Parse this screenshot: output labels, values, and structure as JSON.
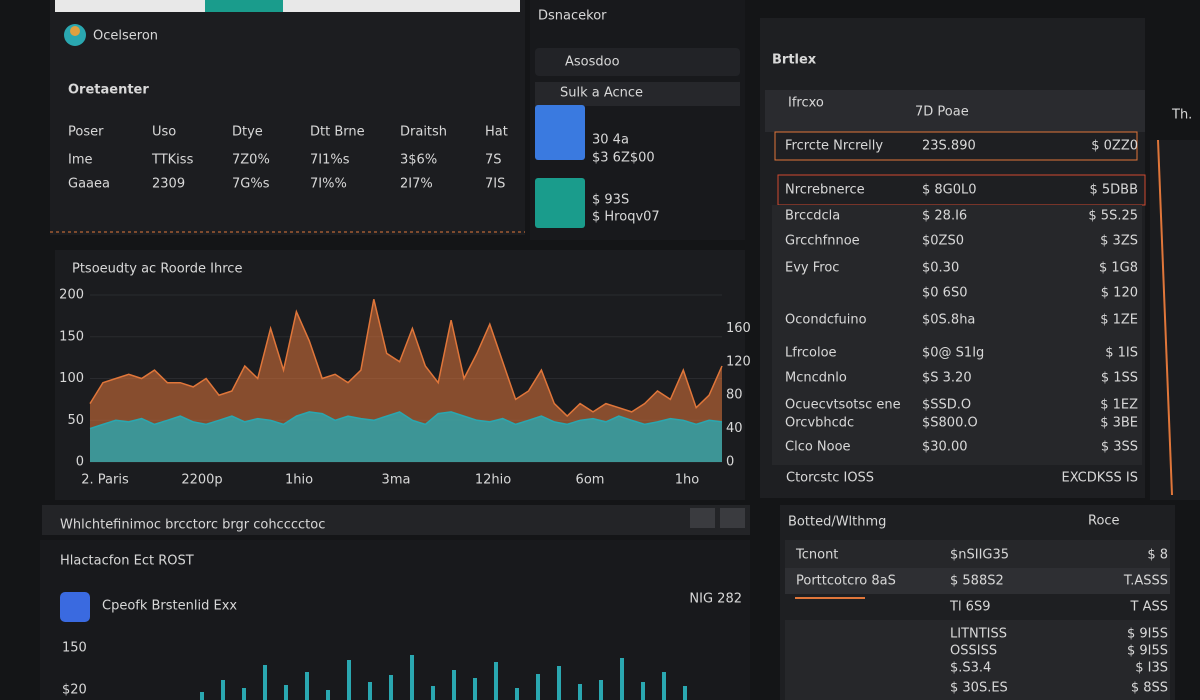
{
  "top_left": {
    "brand": "Ocelseron",
    "title": "Oretaenter",
    "headers": [
      "Poser",
      "Uso",
      "Dtye",
      "Dtt Brne",
      "Draitsh",
      "Hat"
    ],
    "rows": [
      [
        "Ime",
        "TTKiss",
        "7Z0%",
        "7I1%s",
        "3$6%",
        "7S"
      ],
      [
        "Gaaea",
        "2309",
        "7G%s",
        "7I%%",
        "2I7%",
        "7IS"
      ]
    ]
  },
  "mid_top": {
    "title": "Dsnacekor",
    "search": "Asosdoo",
    "toolbar": "Sulk a Acnce",
    "tiles": [
      {
        "value": "30 4a",
        "sub": "$3 6Z$00"
      },
      {
        "value": "$ 93S",
        "sub": "$ Hroqv07"
      }
    ]
  },
  "chart": {
    "type": "area",
    "title": "Ptsoeudty ac Roorde Ihrce",
    "categories": [
      "2. Paris",
      "2200p",
      "1hio",
      "3ma",
      "12hio",
      "6om",
      "1ho"
    ],
    "ylim": [
      0,
      200
    ],
    "yticks": [
      0,
      50,
      100,
      150,
      200
    ],
    "y2lim": [
      0,
      200
    ],
    "y2ticks": [
      0,
      40,
      80,
      120,
      160
    ],
    "series": [
      {
        "color": "#e0763a",
        "values": [
          70,
          95,
          100,
          105,
          100,
          110,
          95,
          95,
          90,
          100,
          80,
          85,
          115,
          100,
          160,
          110,
          180,
          145,
          100,
          105,
          95,
          110,
          195,
          130,
          120,
          160,
          115,
          95,
          170,
          100,
          130,
          165,
          120,
          75,
          85,
          110,
          70,
          55,
          70,
          60,
          70,
          65,
          60,
          70,
          85,
          75,
          110,
          65,
          80,
          115
        ]
      },
      {
        "color": "#2aa7b0",
        "values": [
          40,
          45,
          50,
          48,
          52,
          45,
          50,
          55,
          48,
          45,
          50,
          55,
          48,
          52,
          50,
          45,
          55,
          60,
          58,
          50,
          55,
          52,
          50,
          55,
          60,
          50,
          45,
          58,
          60,
          55,
          50,
          48,
          52,
          45,
          50,
          55,
          48,
          45,
          50,
          52,
          48,
          55,
          50,
          45,
          48,
          52,
          50,
          45,
          50,
          48
        ]
      }
    ]
  },
  "strip": {
    "text": "Whlchtefinimoc brcctorc brgr cohcccctoc"
  },
  "bottom_left": {
    "title": "Hlactacfon Ect ROST",
    "card": "Cpeofk Brstenlid Exx",
    "badge": "NIG 282",
    "ticks": [
      "150",
      "$20"
    ],
    "bars": {
      "color": "#2aa7b0",
      "values": [
        8,
        20,
        12,
        35,
        15,
        28,
        10,
        40,
        18,
        25,
        45,
        14,
        30,
        22,
        38,
        12,
        26,
        34,
        16,
        20,
        42,
        18,
        28,
        14
      ]
    }
  },
  "right_panel": {
    "title": "Brtlex",
    "tab": "Ifrcxo",
    "column": "7D Poae",
    "rows": [
      {
        "name": "Frcrcte Nrcrelly",
        "value": "23S.890",
        "change": "$ 0ZZ0"
      },
      {
        "name": "Nrcrebnerce",
        "value": "$ 8G0L0",
        "change": "$ 5DBB"
      },
      {
        "name": "Brccdcla",
        "value": "$ 28.I6",
        "change": "$ 5S.25"
      },
      {
        "name": "Grcchfnnoe",
        "value": "$0ZS0",
        "change": "$ 3ZS"
      },
      {
        "name": "Evy Froc",
        "value": "$0.30",
        "change": "$ 1G8"
      },
      {
        "value": "$0 6S0",
        "change": "$ 120"
      },
      {
        "name": "Ocondcfuino",
        "value": "$0S.8ha",
        "change": "$ 1ZE"
      },
      {
        "name": "Lfrcoloe",
        "value": "$0@ S1Ig",
        "change": "$ 1IS"
      },
      {
        "name": "Mcncdnlo",
        "value": "$S 3.20",
        "change": "$ 1SS"
      },
      {
        "name": "Ocuecvtsotsc ene",
        "value": "$SSD.O",
        "change": "$ 1EZ"
      },
      {
        "name": "Orcvbhcdc",
        "value": "$S800.O",
        "change": "$ 3BE"
      },
      {
        "name": "Clco Nooe",
        "value": "$30.00",
        "change": "$ 3SS"
      }
    ],
    "footer": [
      "Ctorcstc IOSS",
      "EXCDKSS IS"
    ]
  },
  "bottom_right": {
    "title": "Botted/Wlthmg",
    "action": "Roce",
    "rows": [
      {
        "name": "Tcnont",
        "value": "$nSIIG35",
        "change": "$ 8"
      },
      {
        "name": "Porttcotcro 8aS",
        "value": "$ 588S2",
        "change": "T.ASSS"
      },
      {
        "value": "Tl 6S9",
        "change": "T ASS"
      },
      {
        "value": "LITNTISS",
        "change": "$ 9I5S"
      },
      {
        "value": "OSSISS",
        "change": "$ 9I5S"
      },
      {
        "value": "$.S3.4",
        "change": "$ I3S"
      },
      {
        "value": "$ 30S.ES",
        "change": "$ 8SS"
      }
    ]
  },
  "far_right": {
    "label": "Th."
  }
}
